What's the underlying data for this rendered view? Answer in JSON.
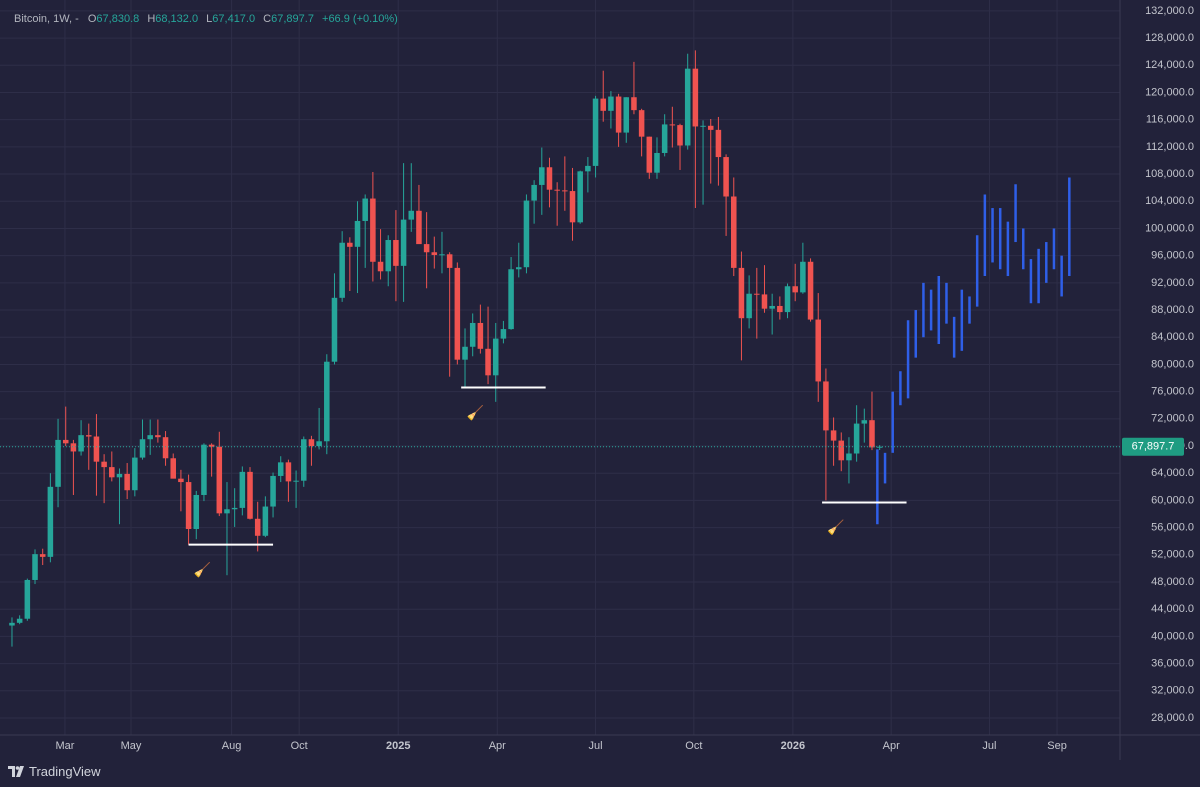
{
  "header": {
    "symbol": "Bitcoin, 1W, -",
    "open_key": "O",
    "open": "67,830.8",
    "high_key": "H",
    "high": "68,132.0",
    "low_key": "L",
    "low": "67,417.0",
    "close_key": "C",
    "close": "67,897.7",
    "change": "+66.9 (+0.10%)"
  },
  "footer": {
    "brand": "TradingView"
  },
  "chart_data": {
    "type": "candlestick",
    "up_color": "#26a69a",
    "down_color": "#ef5350",
    "candles": {
      "open": [
        41600,
        42000,
        42600,
        48300,
        52100,
        51700,
        62000,
        68900,
        68400,
        67200,
        69600,
        69400,
        65700,
        64900,
        63400,
        63900,
        61500,
        66300,
        69000,
        69600,
        69300,
        66200,
        63200,
        62700,
        55800,
        60800,
        68200,
        67900,
        58100,
        58700,
        58900,
        64200,
        57300,
        54800,
        59100,
        63600,
        65600,
        62800,
        62900,
        69000,
        68000,
        68700,
        80400,
        89800,
        97900,
        97300,
        101100,
        104400,
        95100,
        93700,
        98300,
        94500,
        101300,
        102600,
        97700,
        96500,
        96100,
        96200,
        94200,
        80700,
        82600,
        86100,
        82300,
        78400,
        83800,
        85200,
        94000,
        94300,
        104100,
        106400,
        109000,
        105700,
        105600,
        105500,
        100900,
        108400,
        109200,
        119100,
        117300,
        119400,
        114100,
        119300,
        117400,
        113500,
        108200,
        111100,
        115300,
        115200,
        112200,
        123500,
        115000,
        115100,
        114500,
        110500,
        104700,
        94200,
        86800,
        90400,
        90300,
        88200,
        88600,
        87700,
        91500,
        90600,
        95100,
        86600,
        77500,
        70300,
        68800,
        65900,
        66900,
        71300,
        71800,
        67830.8
      ],
      "high": [
        42800,
        43100,
        48500,
        52800,
        52900,
        64000,
        72000,
        73800,
        68900,
        71800,
        71300,
        72700,
        66800,
        67200,
        64700,
        65500,
        67700,
        71900,
        71900,
        71900,
        70200,
        66900,
        64500,
        63800,
        61400,
        68400,
        68400,
        70100,
        62700,
        61800,
        65000,
        64900,
        59800,
        60600,
        64100,
        66500,
        66000,
        64400,
        69400,
        69500,
        73600,
        81500,
        93400,
        99600,
        98700,
        104000,
        105000,
        108300,
        99900,
        99000,
        102700,
        109600,
        109600,
        106400,
        102400,
        98800,
        99500,
        96500,
        95000,
        85300,
        87500,
        88800,
        88500,
        86100,
        86400,
        95800,
        97900,
        105000,
        107100,
        111900,
        110400,
        106800,
        110600,
        108900,
        108500,
        110500,
        119500,
        123200,
        120200,
        119800,
        119300,
        124500,
        117600,
        113500,
        113400,
        116800,
        117900,
        115400,
        125700,
        126200,
        115900,
        116100,
        116400,
        110900,
        107500,
        96600,
        93100,
        94200,
        94600,
        90400,
        90000,
        91900,
        94800,
        97900,
        95600,
        90500,
        79400,
        72200,
        70000,
        69300,
        74000,
        73500,
        76000,
        68132
      ],
      "low": [
        38500,
        41800,
        42300,
        47700,
        50500,
        50900,
        59000,
        68000,
        60800,
        66600,
        64500,
        60700,
        59600,
        62800,
        56500,
        60200,
        60600,
        66000,
        66700,
        68500,
        65100,
        63400,
        58400,
        53500,
        54300,
        59900,
        63500,
        57700,
        49000,
        56100,
        57800,
        57200,
        52500,
        54600,
        57500,
        62700,
        59800,
        58900,
        62000,
        65100,
        67500,
        66800,
        80000,
        89200,
        90800,
        90500,
        94200,
        92200,
        92500,
        91500,
        89300,
        89200,
        99500,
        97800,
        91200,
        94100,
        93400,
        78200,
        80000,
        76600,
        81200,
        81600,
        77100,
        74500,
        83100,
        85100,
        92800,
        93400,
        100700,
        102000,
        103100,
        100400,
        102600,
        98200,
        100700,
        105300,
        107500,
        115700,
        114700,
        112000,
        112600,
        116800,
        110600,
        107300,
        107300,
        110600,
        111900,
        108600,
        111600,
        103000,
        103500,
        106600,
        106300,
        98900,
        93000,
        80600,
        85300,
        83800,
        87600,
        84400,
        86600,
        86800,
        89300,
        90400,
        86300,
        74500,
        60000,
        65100,
        64300,
        62500,
        65700,
        68500,
        67400,
        67417
      ],
      "close": [
        42000,
        42600,
        48300,
        52100,
        51700,
        62000,
        68900,
        68400,
        67200,
        69600,
        69400,
        65700,
        64900,
        63400,
        63900,
        61500,
        66300,
        69000,
        69600,
        69300,
        66200,
        63200,
        62700,
        55800,
        60800,
        68200,
        67900,
        58100,
        58700,
        58900,
        64200,
        57300,
        54800,
        59100,
        63600,
        65600,
        62800,
        62900,
        69000,
        68000,
        68700,
        80400,
        89800,
        97900,
        97300,
        101100,
        104400,
        95100,
        93700,
        98300,
        94500,
        101300,
        102600,
        97700,
        96500,
        96100,
        96200,
        94200,
        80700,
        82600,
        86100,
        82300,
        78400,
        83800,
        85200,
        94000,
        94300,
        104100,
        106400,
        109000,
        105700,
        105600,
        105500,
        100900,
        108400,
        109200,
        119100,
        117300,
        119400,
        114100,
        119300,
        117400,
        113500,
        108200,
        111100,
        115300,
        115200,
        112200,
        123500,
        115000,
        115100,
        114500,
        110500,
        104700,
        94200,
        86800,
        90400,
        90300,
        88200,
        88600,
        87700,
        91500,
        90600,
        95100,
        86600,
        77500,
        70300,
        68800,
        65900,
        66900,
        71300,
        71800,
        67800,
        67897.7
      ]
    },
    "projection": {
      "color": "#2f5fe8",
      "high": [
        67500,
        67000,
        76000,
        79000,
        86500,
        88000,
        92000,
        91000,
        93000,
        92000,
        87000,
        91000,
        90000,
        99000,
        105000,
        103000,
        103000,
        101000,
        106500,
        100000,
        95500,
        97000,
        98000,
        100000,
        96000,
        107500
      ],
      "low": [
        56500,
        62500,
        67000,
        74000,
        75000,
        81000,
        84000,
        85000,
        83000,
        86000,
        81000,
        82000,
        86000,
        88500,
        93000,
        95000,
        94000,
        93000,
        98000,
        94000,
        89000,
        89000,
        92000,
        94000,
        90000,
        93000
      ]
    },
    "levels": [
      {
        "value": 53500
      },
      {
        "value": 76600
      },
      {
        "value": 59700
      }
    ],
    "level_icon": "🧹",
    "last_price": 67897.7,
    "last_price_label": "67,897.7",
    "ylim": [
      25500,
      133600
    ],
    "yticks": [
      {
        "value": 132000,
        "label": "132,000.0"
      },
      {
        "value": 128000,
        "label": "128,000.0"
      },
      {
        "value": 124000,
        "label": "124,000.0"
      },
      {
        "value": 120000,
        "label": "120,000.0"
      },
      {
        "value": 116000,
        "label": "116,000.0"
      },
      {
        "value": 112000,
        "label": "112,000.0"
      },
      {
        "value": 108000,
        "label": "108,000.0"
      },
      {
        "value": 104000,
        "label": "104,000.0"
      },
      {
        "value": 100000,
        "label": "100,000.0"
      },
      {
        "value": 96000,
        "label": "96,000.0"
      },
      {
        "value": 92000,
        "label": "92,000.0"
      },
      {
        "value": 88000,
        "label": "88,000.0"
      },
      {
        "value": 84000,
        "label": "84,000.0"
      },
      {
        "value": 80000,
        "label": "80,000.0"
      },
      {
        "value": 76000,
        "label": "76,000.0"
      },
      {
        "value": 72000,
        "label": "72,000.0"
      },
      {
        "value": 68000,
        "label": "68,000.0"
      },
      {
        "value": 64000,
        "label": "64,000.0"
      },
      {
        "value": 60000,
        "label": "60,000.0"
      },
      {
        "value": 56000,
        "label": "56,000.0"
      },
      {
        "value": 52000,
        "label": "52,000.0"
      },
      {
        "value": 48000,
        "label": "48,000.0"
      },
      {
        "value": 44000,
        "label": "44,000.0"
      },
      {
        "value": 40000,
        "label": "40,000.0"
      },
      {
        "value": 36000,
        "label": "36,000.0"
      },
      {
        "value": 32000,
        "label": "32,000.0"
      },
      {
        "value": 28000,
        "label": "28,000.0"
      }
    ],
    "xlim": [
      -1.56,
      144.3
    ],
    "xticks": [
      {
        "value": 6.9,
        "label": "Mar"
      },
      {
        "value": 15.5,
        "label": "May"
      },
      {
        "value": 28.6,
        "label": "Aug"
      },
      {
        "value": 37.4,
        "label": "Oct"
      },
      {
        "value": 50.3,
        "label": "2025"
      },
      {
        "value": 63.2,
        "label": "Apr"
      },
      {
        "value": 76.0,
        "label": "Jul"
      },
      {
        "value": 88.8,
        "label": "Oct"
      },
      {
        "value": 101.7,
        "label": "2026"
      },
      {
        "value": 114.5,
        "label": "Apr"
      },
      {
        "value": 127.3,
        "label": "Jul"
      },
      {
        "value": 136.1,
        "label": "Sep"
      }
    ],
    "grid": true
  }
}
